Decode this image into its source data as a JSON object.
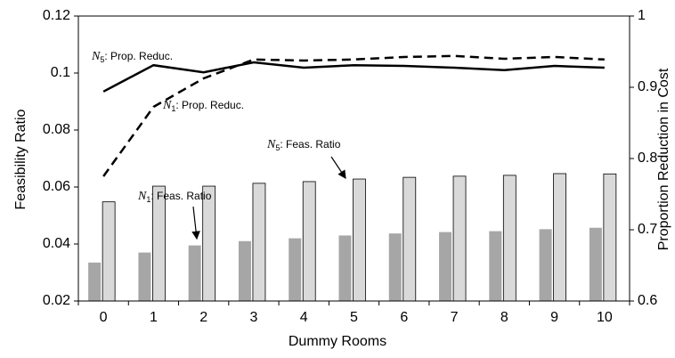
{
  "chart_data": {
    "type": "bar-line",
    "x_label": "Dummy Rooms",
    "y_label": "Feasibility Ratio",
    "y2_label": "Proportion Reduction in Cost",
    "categories": [
      "0",
      "1",
      "2",
      "3",
      "4",
      "5",
      "6",
      "7",
      "8",
      "9",
      "10"
    ],
    "ylim": [
      0.02,
      0.12
    ],
    "yticks": [
      0.02,
      0.04,
      0.06,
      0.08,
      0.1,
      0.12
    ],
    "y2lim": [
      0.6,
      1
    ],
    "y2ticks": [
      0.6,
      0.7,
      0.8,
      0.9,
      1
    ],
    "series": [
      {
        "kind": "bar",
        "color": "#a6a6a6",
        "values": [
          0.0335,
          0.037,
          0.0395,
          0.041,
          0.042,
          0.043,
          0.0437,
          0.0442,
          0.0445,
          0.0452,
          0.0457
        ]
      },
      {
        "kind": "bar",
        "color": "#d9d9d9",
        "values": [
          0.0548,
          0.0603,
          0.0603,
          0.0613,
          0.0619,
          0.0628,
          0.0634,
          0.0638,
          0.0641,
          0.0647,
          0.0646
        ]
      },
      {
        "kind": "line",
        "axis": "y2",
        "color": "#000000",
        "dash": false,
        "values": [
          0.894,
          0.931,
          0.921,
          0.935,
          0.9275,
          0.931,
          0.93,
          0.9275,
          0.924,
          0.93,
          0.9275
        ]
      },
      {
        "kind": "line",
        "axis": "y2",
        "color": "#000000",
        "dash": true,
        "values": [
          0.775,
          0.8725,
          0.9125,
          0.939,
          0.9375,
          0.939,
          0.9425,
          0.944,
          0.94,
          0.9425,
          0.939
        ]
      }
    ],
    "annotations": [
      {
        "symbol": "N",
        "sub": "5",
        "text": ": Prop. Reduc."
      },
      {
        "symbol": "N",
        "sub": "1",
        "text": ": Prop. Reduc."
      },
      {
        "symbol": "N",
        "sub": "1",
        "text": ": Feas. Ratio"
      },
      {
        "symbol": "N",
        "sub": "5",
        "text": ": Feas. Ratio"
      }
    ]
  }
}
